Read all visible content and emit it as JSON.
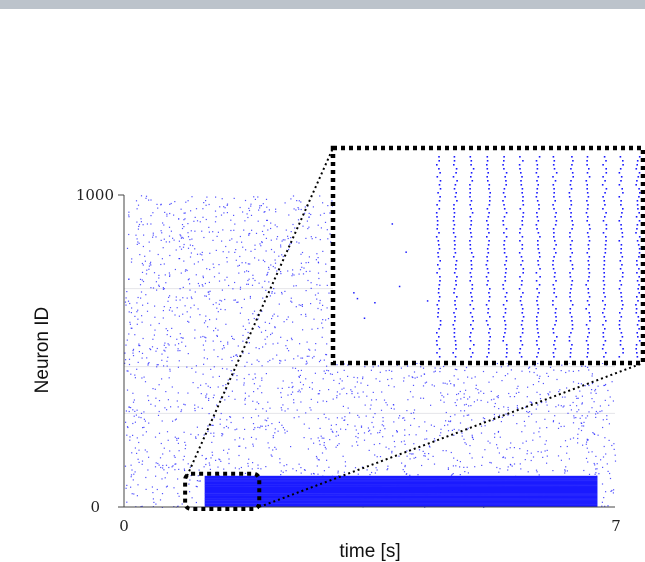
{
  "chart_data": {
    "type": "scatter",
    "title": "",
    "xlabel": "time [s]",
    "ylabel": "Neuron ID",
    "xlim": [
      0,
      7
    ],
    "ylim": [
      0,
      1000
    ],
    "x_tick_labels": [
      "0",
      "7"
    ],
    "y_tick_labels": [
      "0",
      "1000"
    ],
    "grid": true,
    "legend": "none",
    "marker_color": "#1a1aff",
    "zoom_border_color": "#000000",
    "series": [
      {
        "kind": "background_random_spikes",
        "neuron_range": [
          0,
          1000
        ],
        "time_range": [
          0,
          7
        ],
        "approx_spike_count": 3200
      },
      {
        "kind": "dense_stimulated_band",
        "neuron_range": [
          0,
          100
        ],
        "time_range": [
          1.15,
          6.75
        ]
      }
    ],
    "zoom_region": {
      "time_range": [
        0.9,
        1.9
      ],
      "neuron_range": [
        0,
        100
      ],
      "quiet_fraction": 0.28,
      "burst_columns": 13
    }
  }
}
